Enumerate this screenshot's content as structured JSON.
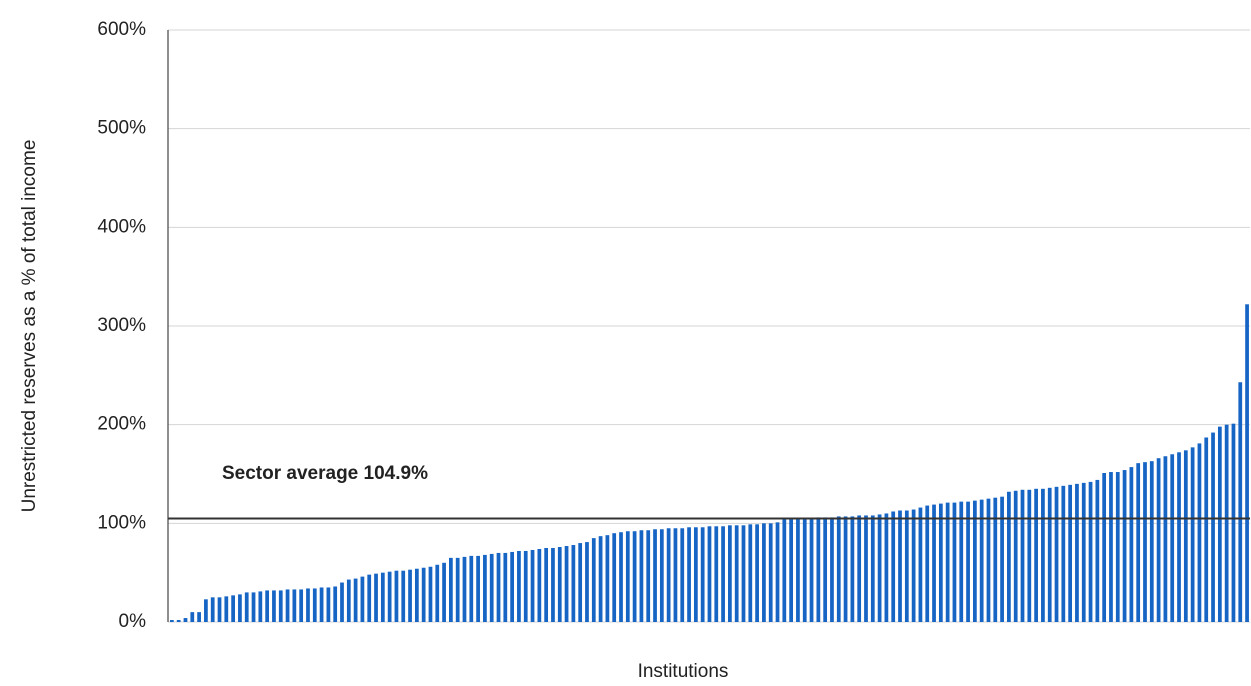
{
  "chart_data": {
    "type": "bar",
    "y_label": "Unrestricted reserves as a % of total income",
    "x_label": "Institutions",
    "color": "#1664c4",
    "values": [
      2,
      2,
      4,
      10,
      10,
      23,
      25,
      25,
      26,
      27,
      28,
      30,
      30,
      31,
      32,
      32,
      32,
      33,
      33,
      33,
      34,
      34,
      35,
      35,
      36,
      40,
      43,
      44,
      46,
      48,
      49,
      50,
      51,
      52,
      52,
      53,
      54,
      55,
      56,
      58,
      60,
      65,
      65,
      66,
      67,
      67,
      68,
      69,
      70,
      70,
      71,
      72,
      72,
      73,
      74,
      75,
      75,
      76,
      77,
      78,
      80,
      81,
      85,
      87,
      88,
      90,
      91,
      92,
      92,
      93,
      93,
      94,
      94,
      95,
      95,
      95,
      96,
      96,
      96,
      97,
      97,
      97,
      98,
      98,
      98,
      99,
      99,
      100,
      100,
      101,
      104,
      104,
      105,
      105,
      105,
      106,
      106,
      106,
      107,
      107,
      107,
      108,
      108,
      108,
      109,
      110,
      112,
      113,
      113,
      114,
      116,
      118,
      119,
      120,
      121,
      121,
      122,
      122,
      123,
      124,
      125,
      126,
      127,
      132,
      133,
      134,
      134,
      135,
      135,
      136,
      137,
      138,
      139,
      140,
      141,
      142,
      144,
      151,
      152,
      152,
      154,
      157,
      161,
      162,
      163,
      166,
      168,
      170,
      172,
      174,
      177,
      181,
      187,
      192,
      198,
      200,
      201,
      243,
      322
    ],
    "ylim": [
      0,
      600
    ],
    "yticks": [
      {
        "value": 0,
        "label": "0%"
      },
      {
        "value": 100,
        "label": "100%"
      },
      {
        "value": 200,
        "label": "200%"
      },
      {
        "value": 300,
        "label": "300%"
      },
      {
        "value": 400,
        "label": "400%"
      },
      {
        "value": 500,
        "label": "500%"
      },
      {
        "value": 600,
        "label": "600%"
      }
    ],
    "grid": true,
    "reference_line": {
      "value": 104.9,
      "label": "Sector average 104.9%",
      "color": "#333333"
    }
  }
}
